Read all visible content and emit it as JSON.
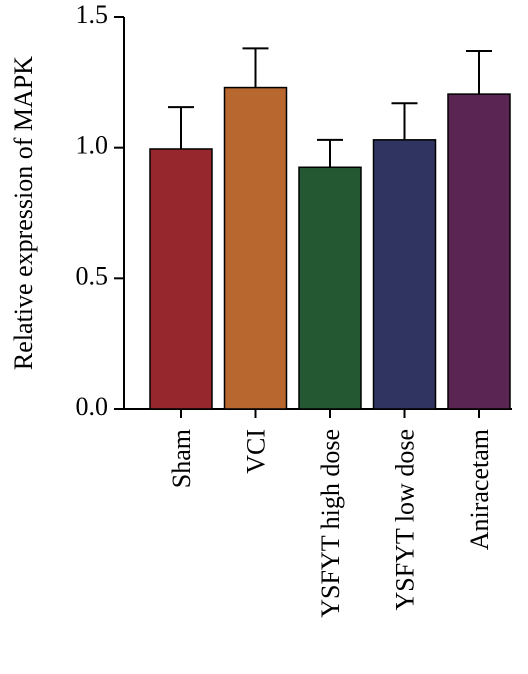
{
  "chart_data": {
    "type": "bar",
    "title": "",
    "xlabel": "",
    "ylabel": "Relative expression of MAPK",
    "ylim": [
      0,
      1.5
    ],
    "yticks": [
      "0.0",
      "0.5",
      "1.0",
      "1.5"
    ],
    "grid": false,
    "categories": [
      "Sham",
      "VCI",
      "YSFYT high dose",
      "YSFYT low dose",
      "Aniracetam"
    ],
    "values": [
      0.995,
      1.23,
      0.925,
      1.03,
      1.205
    ],
    "errors": [
      0.16,
      0.15,
      0.105,
      0.14,
      0.165
    ],
    "colors": [
      "#96282d",
      "#b8672f",
      "#235833",
      "#2f3461",
      "#5b2553"
    ]
  }
}
